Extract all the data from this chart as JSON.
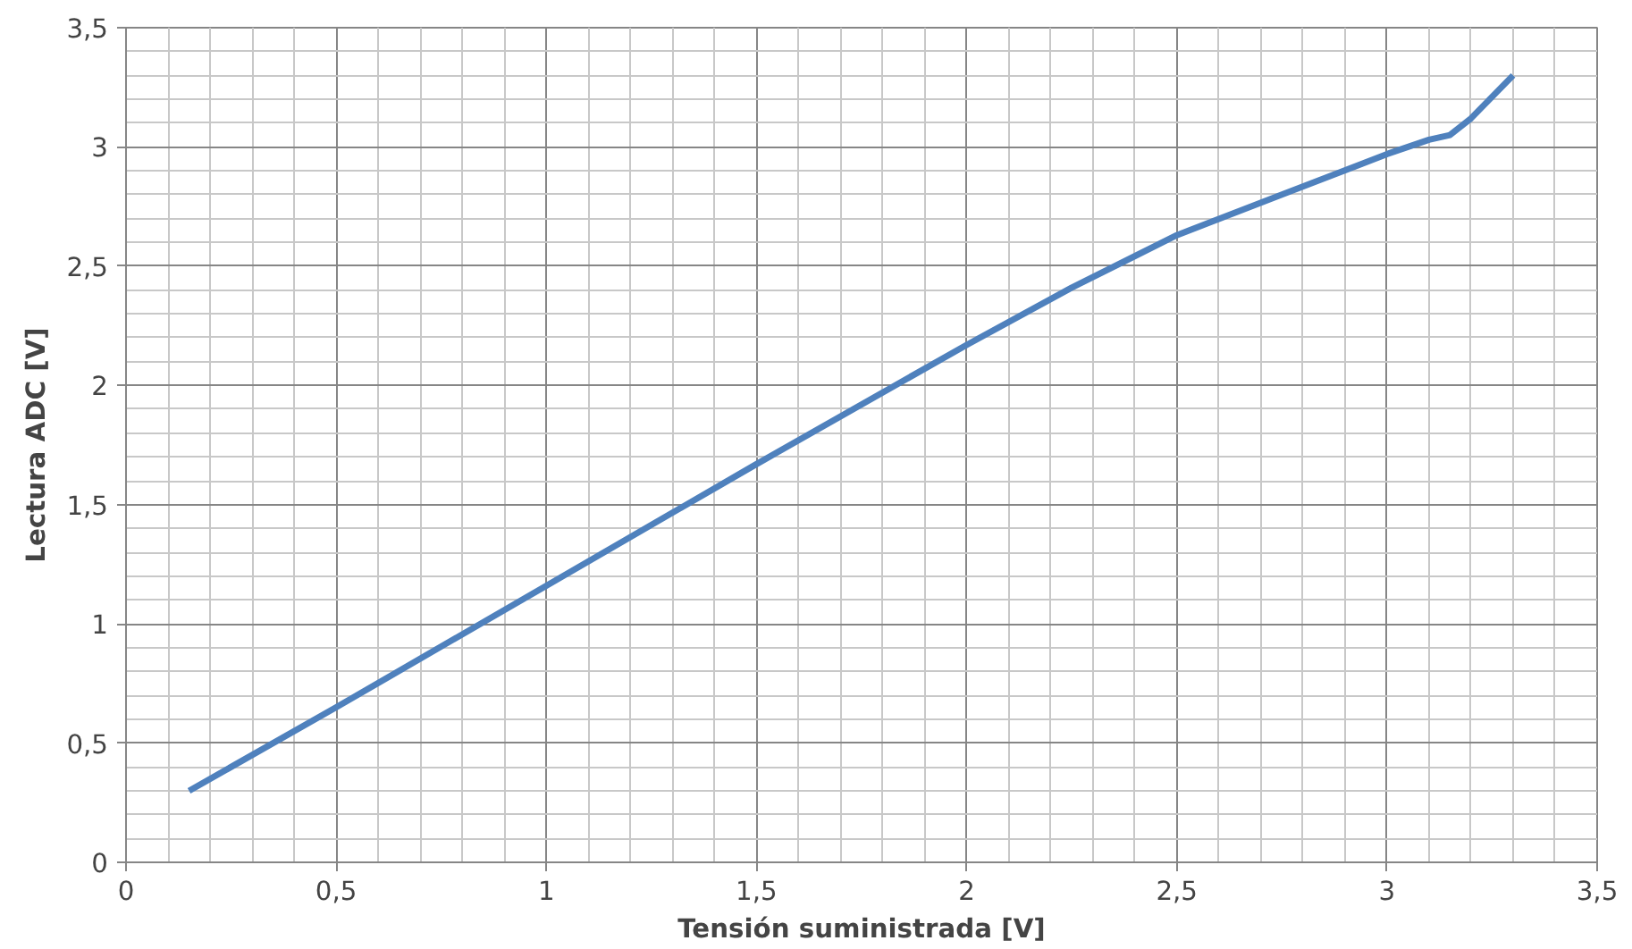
{
  "chart_data": {
    "type": "line",
    "xlabel": "Tensión suministrada [V]",
    "ylabel": "Lectura ADC [V]",
    "series": [
      {
        "color": "#4f81bd",
        "x": [
          0.15,
          0.5,
          1,
          1.5,
          2,
          2.25,
          2.5,
          2.75,
          3,
          3.1,
          3.15,
          3.2,
          3.3
        ],
        "values": [
          0.3,
          0.65,
          1.16,
          1.67,
          2.17,
          2.41,
          2.63,
          2.8,
          2.97,
          3.03,
          3.05,
          3.12,
          3.3
        ]
      }
    ],
    "xlim": [
      0,
      3.5
    ],
    "ylim": [
      0,
      3.5
    ],
    "xticks": [
      0,
      {
        "value": 0.5,
        "label": "0,5"
      },
      1,
      {
        "value": 1.5,
        "label": "1,5"
      },
      2,
      {
        "value": 2.5,
        "label": "2,5"
      },
      3,
      {
        "value": 3.5,
        "label": "3,5"
      }
    ],
    "yticks": [
      0,
      {
        "value": 0.5,
        "label": "0,5"
      },
      1,
      {
        "value": 1.5,
        "label": "1,5"
      },
      2,
      {
        "value": 2.5,
        "label": "2,5"
      },
      3,
      {
        "value": 3.5,
        "label": "3,5"
      }
    ],
    "grid": true,
    "marker": "none",
    "line_style": "solid"
  }
}
